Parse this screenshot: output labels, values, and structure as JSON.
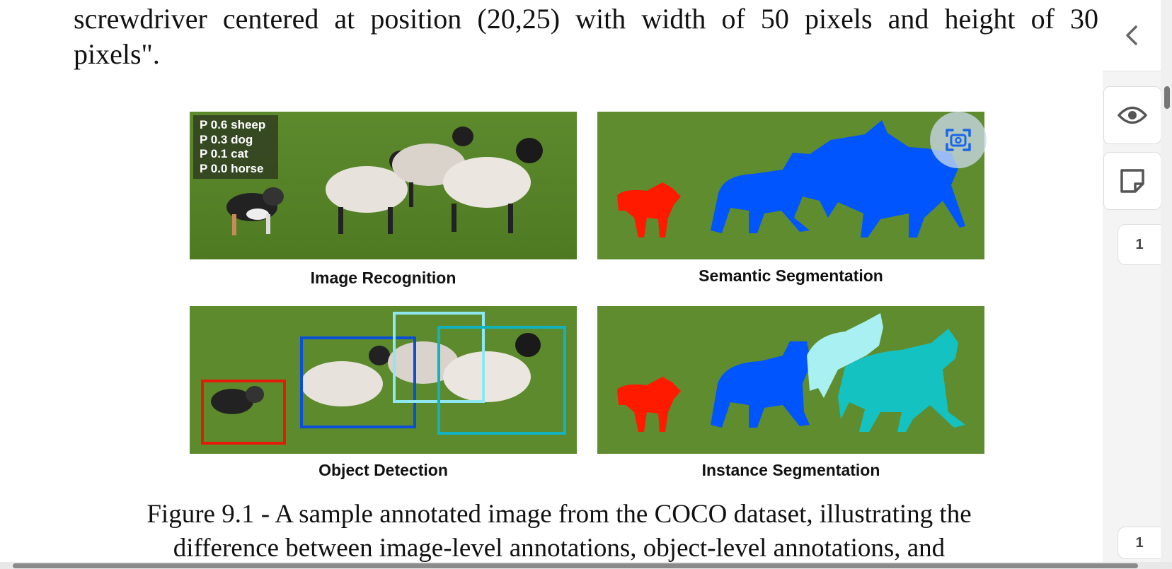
{
  "document": {
    "paragraph_lines": [
      "screwdriver centered at position (20,25) with width of 50 pixels and height of 30",
      "pixels\"."
    ],
    "figure": {
      "panels": [
        {
          "label": "Image Recognition",
          "probabilities": [
            "P 0.6 sheep",
            "P 0.3 dog",
            "P 0.1 cat",
            "P 0.0 horse"
          ]
        },
        {
          "label": "Semantic Segmentation"
        },
        {
          "label": "Object Detection"
        },
        {
          "label": "Instance Segmentation"
        }
      ],
      "mask_colors": {
        "dog": "#ff1a00",
        "sheep": "#0055ff",
        "sheep_light": "#a8f0f2",
        "sheep_teal": "#14c2c2"
      },
      "box_colors": [
        "#e51b0a",
        "#0a4fd8",
        "#8fe7ef",
        "#12b3c0"
      ]
    },
    "caption_lines": [
      "Figure 9.1 - A sample annotated image from the COCO dataset, illustrating the",
      "difference between image-level annotations, object-level annotations, and"
    ]
  },
  "toolbar": {
    "collapse_icon": "chevron-left-icon",
    "view_icon": "eye-icon",
    "note_icon": "sticky-note-icon",
    "capture_icon": "screen-capture-icon",
    "page_markers": [
      "1",
      "1"
    ]
  }
}
